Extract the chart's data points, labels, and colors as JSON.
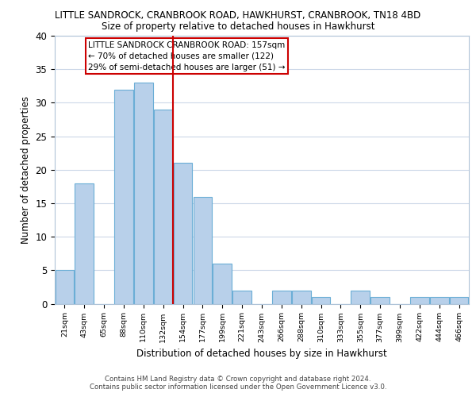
{
  "title_line1": "LITTLE SANDROCK, CRANBROOK ROAD, HAWKHURST, CRANBROOK, TN18 4BD",
  "title_line2": "Size of property relative to detached houses in Hawkhurst",
  "xlabel": "Distribution of detached houses by size in Hawkhurst",
  "ylabel": "Number of detached properties",
  "bin_labels": [
    "21sqm",
    "43sqm",
    "65sqm",
    "88sqm",
    "110sqm",
    "132sqm",
    "154sqm",
    "177sqm",
    "199sqm",
    "221sqm",
    "243sqm",
    "266sqm",
    "288sqm",
    "310sqm",
    "333sqm",
    "355sqm",
    "377sqm",
    "399sqm",
    "422sqm",
    "444sqm",
    "466sqm"
  ],
  "bar_heights": [
    5,
    18,
    0,
    32,
    33,
    29,
    21,
    16,
    6,
    2,
    0,
    2,
    2,
    1,
    0,
    2,
    1,
    0,
    1,
    1,
    1
  ],
  "bar_color": "#b8d0ea",
  "bar_edge_color": "#6baed6",
  "ylim": [
    0,
    40
  ],
  "yticks": [
    0,
    5,
    10,
    15,
    20,
    25,
    30,
    35,
    40
  ],
  "annotation_title": "LITTLE SANDROCK CRANBROOK ROAD: 157sqm",
  "annotation_line2": "← 70% of detached houses are smaller (122)",
  "annotation_line3": "29% of semi-detached houses are larger (51) →",
  "footer_line1": "Contains HM Land Registry data © Crown copyright and database right 2024.",
  "footer_line2": "Contains public sector information licensed under the Open Government Licence v3.0.",
  "background_color": "#ffffff",
  "grid_color": "#ccd8e8",
  "property_line_bin": 6,
  "vline_color": "#cc0000",
  "annotation_box_color": "#cc0000",
  "spine_color": "#b0c4d8"
}
